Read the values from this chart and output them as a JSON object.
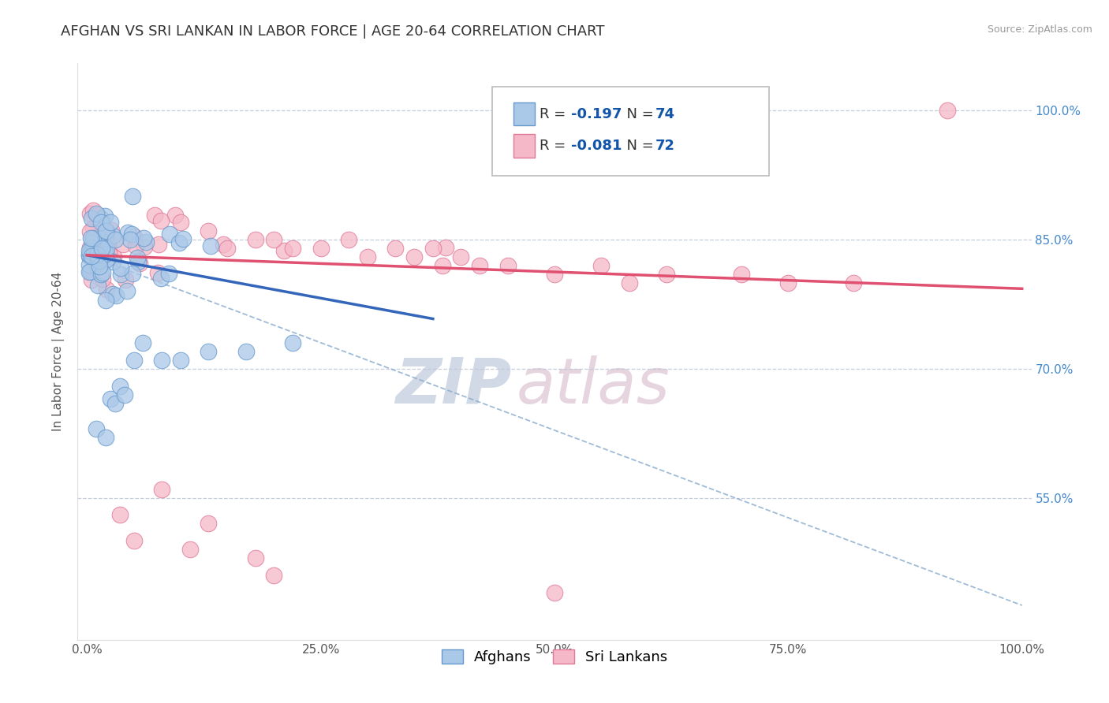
{
  "title": "AFGHAN VS SRI LANKAN IN LABOR FORCE | AGE 20-64 CORRELATION CHART",
  "source_text": "Source: ZipAtlas.com",
  "ylabel": "In Labor Force | Age 20-64",
  "xlim": [
    -0.01,
    1.01
  ],
  "ylim": [
    0.385,
    1.055
  ],
  "x_ticks": [
    0.0,
    0.25,
    0.5,
    0.75,
    1.0
  ],
  "x_tick_labels": [
    "0.0%",
    "25.0%",
    "50.0%",
    "75.0%",
    "100.0%"
  ],
  "y_ticks": [
    0.55,
    0.7,
    0.85,
    1.0
  ],
  "y_tick_labels": [
    "55.0%",
    "70.0%",
    "85.0%",
    "100.0%"
  ],
  "grid_color": "#c0c8d8",
  "background_color": "#ffffff",
  "afghan_color": "#aac8e8",
  "afghan_edge_color": "#6699cc",
  "srilankan_color": "#f5b8c8",
  "srilankan_edge_color": "#e07898",
  "afghan_line_color": "#3366bb",
  "srilankan_line_color": "#e05070",
  "dashed_line_color": "#88aacc",
  "R_color": "#1155aa",
  "N_color": "#1155aa",
  "R_afghan": "-0.197",
  "N_afghan": "74",
  "R_srilankan": "-0.081",
  "N_srilankan": "72",
  "legend_label_afghan": "Afghans",
  "legend_label_srilankan": "Sri Lankans",
  "watermark": "ZIPatlas",
  "watermark_color_zip": "#aabbd0",
  "watermark_color_atlas": "#c8a0b8",
  "title_fontsize": 13,
  "axis_label_fontsize": 11,
  "tick_fontsize": 11,
  "legend_fontsize": 13,
  "ytick_color": "#4488cc",
  "xtick_color": "#555555",
  "afghan_line_x_end": 0.37,
  "srilankan_line_x_end": 1.0,
  "srilankan_line_y_start": 0.832,
  "srilankan_line_y_end": 0.793,
  "afghan_line_y_start": 0.832,
  "afghan_line_y_end": 0.758,
  "dashed_line_y_start": 0.832,
  "dashed_line_y_end": 0.425
}
